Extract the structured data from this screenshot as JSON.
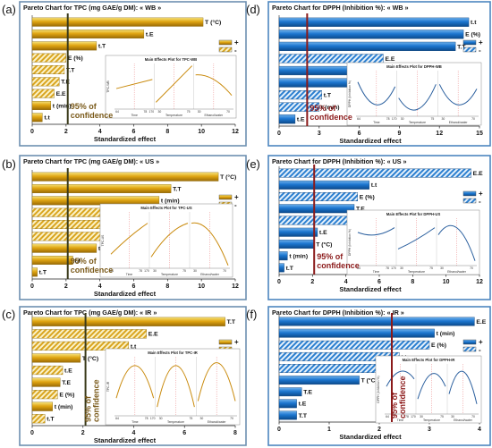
{
  "colors": {
    "gold_top": "#f6e27a",
    "gold_mid": "#e0a512",
    "gold_bottom": "#9a6a05",
    "blue_top": "#6fb1ec",
    "blue_mid": "#1c76cf",
    "blue_bottom": "#0b4a8c",
    "hatch_blue": "#2b7fd0",
    "frame_gold": "#6d8fb0",
    "frame_blue": "#4d86bf",
    "conf_line_gold": "#3a3a1a",
    "conf_text_gold": "#7a5a1a",
    "conf_line_blue": "#8b1a1a",
    "conf_text_blue": "#8b1a1a"
  },
  "chart_data": [
    {
      "panel_label": "(a)",
      "type": "bar",
      "orientation": "horizontal",
      "theme": "gold",
      "title": "Pareto Chart for TPC (mg GAE/g DM): « WB »",
      "xlabel": "Standardized effect",
      "xlim": [
        0,
        12
      ],
      "xticks": [
        0,
        2,
        4,
        6,
        8,
        10,
        12
      ],
      "confidence_value": 2.1,
      "confidence_label": "95% of confidence",
      "legend": [
        "+",
        "-"
      ],
      "bars": [
        {
          "label": "T (°C)",
          "value": 10.1,
          "sign": "+"
        },
        {
          "label": "t.E",
          "value": 6.6,
          "sign": "+"
        },
        {
          "label": "t.T",
          "value": 3.8,
          "sign": "+"
        },
        {
          "label": "E (%)",
          "value": 2.0,
          "sign": "-"
        },
        {
          "label": "T.T",
          "value": 1.9,
          "sign": "-"
        },
        {
          "label": "T.E",
          "value": 1.6,
          "sign": "-"
        },
        {
          "label": "E.E",
          "value": 1.3,
          "sign": "-"
        },
        {
          "label": "t (min)",
          "value": 1.1,
          "sign": "+"
        },
        {
          "label": "t.t",
          "value": 0.6,
          "sign": "+"
        }
      ],
      "inset": {
        "title": "Main Effects Plot for TPC-WB",
        "ylabel": "TPC-WB",
        "xaxes": [
          "Time",
          "Temperature",
          "Ethanol/water"
        ],
        "xticks": [
          "64",
          "78",
          "170",
          "30",
          "75",
          "30",
          "70"
        ]
      }
    },
    {
      "panel_label": "(b)",
      "type": "bar",
      "orientation": "horizontal",
      "theme": "gold",
      "title": "Pareto Chart for TPC (mg GAE/g DM): « US »",
      "xlabel": "Standardized effect",
      "xlim": [
        0,
        12
      ],
      "xticks": [
        0,
        2,
        4,
        6,
        8,
        10,
        12
      ],
      "confidence_value": 2.1,
      "confidence_label": "95% of confidence",
      "legend": [
        "+",
        "-"
      ],
      "bars": [
        {
          "label": "T (°C)",
          "value": 11.0,
          "sign": "+"
        },
        {
          "label": "T.T",
          "value": 8.2,
          "sign": "+"
        },
        {
          "label": "t (min)",
          "value": 7.5,
          "sign": "+"
        },
        {
          "label": "E (%)",
          "value": 6.8,
          "sign": "-"
        },
        {
          "label": "E.E",
          "value": 6.7,
          "sign": "-"
        },
        {
          "label": "T.E",
          "value": 5.2,
          "sign": "-"
        },
        {
          "label": "t.E",
          "value": 3.8,
          "sign": "+"
        },
        {
          "label": "t.t",
          "value": 2.4,
          "sign": "+"
        },
        {
          "label": "t.T",
          "value": 0.3,
          "sign": "+"
        }
      ],
      "inset": {
        "title": "Main Effects Plot for TPC-US",
        "ylabel": "TPC-US",
        "xaxes": [
          "Time",
          "Temperature",
          "Ethanol/water"
        ],
        "xticks": [
          "64",
          "78",
          "170",
          "30",
          "75",
          "30",
          "70"
        ]
      }
    },
    {
      "panel_label": "(c)",
      "type": "bar",
      "orientation": "horizontal",
      "theme": "gold",
      "title": "Pareto Chart for TPC (mg GAE/g DM): « IR »",
      "xlabel": "Standardized effect",
      "xlim": [
        0,
        8
      ],
      "xticks": [
        0,
        2,
        4,
        6,
        8
      ],
      "confidence_value": 2.1,
      "confidence_label": "95% of confidence",
      "legend": [
        "+",
        "-"
      ],
      "bars": [
        {
          "label": "T.T",
          "value": 7.6,
          "sign": "+"
        },
        {
          "label": "E.E",
          "value": 4.5,
          "sign": "-"
        },
        {
          "label": "t.t",
          "value": 3.8,
          "sign": "-"
        },
        {
          "label": "T (°C)",
          "value": 1.9,
          "sign": "+"
        },
        {
          "label": "t.E",
          "value": 1.2,
          "sign": "-"
        },
        {
          "label": "T.E",
          "value": 1.1,
          "sign": "+"
        },
        {
          "label": "E (%)",
          "value": 1.0,
          "sign": "-"
        },
        {
          "label": "t (min)",
          "value": 0.8,
          "sign": "+"
        },
        {
          "label": "t.T",
          "value": 0.5,
          "sign": "-"
        }
      ],
      "inset": {
        "title": "Main Effects Plot for TPC-IR",
        "ylabel": "TPC-IR",
        "xaxes": [
          "Time",
          "Temperature",
          "Ethanol/water"
        ],
        "xticks": [
          "64",
          "78",
          "170",
          "30",
          "75",
          "30",
          "70"
        ]
      }
    },
    {
      "panel_label": "(d)",
      "type": "bar",
      "orientation": "horizontal",
      "theme": "blue",
      "title": "Pareto Chart for DPPH (Inhibition %): « WB »",
      "xlabel": "Standardized effect",
      "xlim": [
        0,
        15
      ],
      "xticks": [
        0,
        3,
        6,
        9,
        12,
        15
      ],
      "confidence_value": 2.1,
      "confidence_label": "95% of confidence",
      "legend": [
        "+",
        "-"
      ],
      "bars": [
        {
          "label": "t.t",
          "value": 14.2,
          "sign": "+"
        },
        {
          "label": "E (%)",
          "value": 13.8,
          "sign": "+"
        },
        {
          "label": "T.T",
          "value": 13.2,
          "sign": "+"
        },
        {
          "label": "E.E",
          "value": 7.8,
          "sign": "-"
        },
        {
          "label": "T.E",
          "value": 7.0,
          "sign": "+"
        },
        {
          "label": "E (%)",
          "value": 5.4,
          "sign": "+"
        },
        {
          "label": "t.T",
          "value": 3.2,
          "sign": "-"
        },
        {
          "label": "t (min)",
          "value": 3.0,
          "sign": "-"
        },
        {
          "label": "t.E",
          "value": 1.2,
          "sign": "+"
        }
      ],
      "inset": {
        "title": "Main Effects Plot for DPPH-WB",
        "ylabel": "DPPH (Inhibition %)",
        "xaxes": [
          "Time",
          "Temperature",
          "Ethanol/water"
        ],
        "xticks": [
          "64",
          "78",
          "170",
          "30",
          "75",
          "30",
          "70"
        ]
      }
    },
    {
      "panel_label": "(e)",
      "type": "bar",
      "orientation": "horizontal",
      "theme": "blue",
      "title": "Pareto Chart for DPPH (Inhibition %): « US »",
      "xlabel": "Standardized effect",
      "xlim": [
        0,
        12
      ],
      "xticks": [
        0,
        2,
        4,
        6,
        8,
        10,
        12
      ],
      "confidence_value": 2.1,
      "confidence_label": "95% of confidence",
      "legend": [
        "+",
        "-"
      ],
      "bars": [
        {
          "label": "E.E",
          "value": 11.5,
          "sign": "-"
        },
        {
          "label": "t.t",
          "value": 5.4,
          "sign": "+"
        },
        {
          "label": "E (%)",
          "value": 4.7,
          "sign": "-"
        },
        {
          "label": "T.E",
          "value": 4.5,
          "sign": "+"
        },
        {
          "label": "T.T",
          "value": 4.4,
          "sign": "-"
        },
        {
          "label": "t.E",
          "value": 2.3,
          "sign": "+"
        },
        {
          "label": "T (°C)",
          "value": 2.1,
          "sign": "+"
        },
        {
          "label": "t (min)",
          "value": 0.5,
          "sign": "+"
        },
        {
          "label": "t.T",
          "value": 0.3,
          "sign": "+"
        }
      ],
      "inset": {
        "title": "Main Effects Plot for DPPH-US",
        "ylabel": "DPPH (Inhibition %)",
        "xaxes": [
          "Time",
          "Temperature",
          "Ethanol/water"
        ],
        "xticks": [
          "64",
          "78",
          "170",
          "30",
          "75",
          "30",
          "70"
        ]
      }
    },
    {
      "panel_label": "(f)",
      "type": "bar",
      "orientation": "horizontal",
      "theme": "blue",
      "title": "Pareto Chart for DPPH (Inhibition %): « IR »",
      "xlabel": "Standardized effect",
      "xlim": [
        0,
        4
      ],
      "xticks": [
        0,
        1,
        2,
        3,
        4
      ],
      "confidence_value": 2.25,
      "confidence_label": "95% of confidence",
      "legend": [
        "+",
        "-"
      ],
      "bars": [
        {
          "label": "E.E",
          "value": 3.9,
          "sign": "+"
        },
        {
          "label": "t (min)",
          "value": 3.1,
          "sign": "+"
        },
        {
          "label": "E (%)",
          "value": 3.0,
          "sign": "-"
        },
        {
          "label": "t.t",
          "value": 2.4,
          "sign": "-"
        },
        {
          "label": "t.E",
          "value": 2.3,
          "sign": "-"
        },
        {
          "label": "T (°C)",
          "value": 1.6,
          "sign": "+"
        },
        {
          "label": "T.E",
          "value": 0.45,
          "sign": "+"
        },
        {
          "label": "t.E",
          "value": 0.35,
          "sign": "+"
        },
        {
          "label": "T.T",
          "value": 0.35,
          "sign": "+"
        }
      ],
      "inset": {
        "title": "Main Effects Plot for DPPH-IR",
        "ylabel": "DPPH (Inhibition %)",
        "xaxes": [
          "Time",
          "Temperature",
          "Ethanol/water"
        ],
        "xticks": [
          "64",
          "78",
          "170",
          "30",
          "75",
          "30",
          "70"
        ]
      }
    }
  ]
}
